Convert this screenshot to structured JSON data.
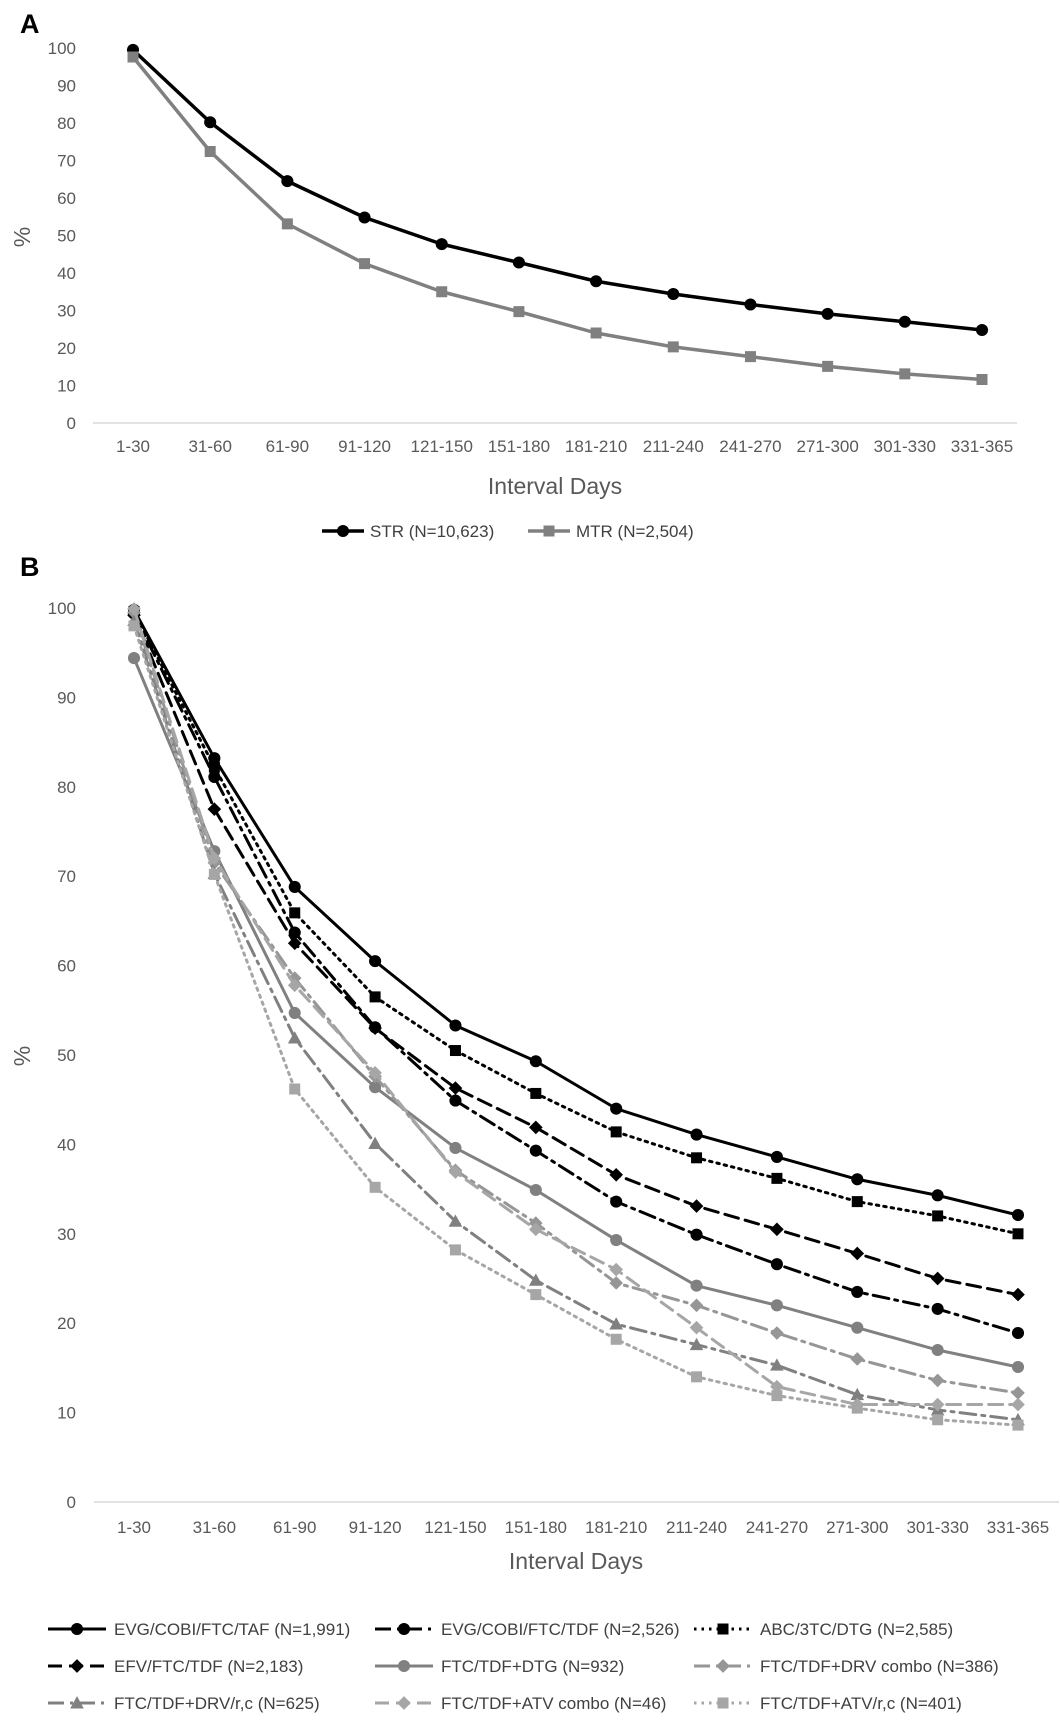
{
  "chart_data": [
    {
      "panel": "A",
      "type": "line",
      "categories": [
        "1-30",
        "31-60",
        "61-90",
        "91-120",
        "121-150",
        "151-180",
        "181-210",
        "211-240",
        "241-270",
        "271-300",
        "301-330",
        "331-365"
      ],
      "xlabel": "Interval Days",
      "ylabel": "%",
      "ylim": [
        0,
        100
      ],
      "yticks": [
        0,
        10,
        20,
        30,
        40,
        50,
        60,
        70,
        80,
        90,
        100
      ],
      "grid": false,
      "legend_position": "bottom",
      "series": [
        {
          "name": "STR (N=10,623)",
          "color": "#000000",
          "dash": "solid",
          "marker": "circle",
          "values": [
            99.5,
            80.2,
            64.5,
            54.8,
            47.7,
            42.8,
            37.8,
            34.4,
            31.6,
            29.1,
            27.0,
            24.8
          ]
        },
        {
          "name": "MTR (N=2,504)",
          "color": "#808080",
          "dash": "solid",
          "marker": "square",
          "values": [
            97.6,
            72.4,
            53.1,
            42.5,
            35.0,
            29.7,
            24.0,
            20.3,
            17.7,
            15.1,
            13.1,
            11.6
          ]
        }
      ]
    },
    {
      "panel": "B",
      "type": "line",
      "categories": [
        "1-30",
        "31-60",
        "61-90",
        "91-120",
        "121-150",
        "151-180",
        "181-210",
        "211-240",
        "241-270",
        "271-300",
        "301-330",
        "331-365"
      ],
      "xlabel": "Interval Days",
      "ylabel": "%",
      "ylim": [
        0,
        100
      ],
      "yticks": [
        0,
        10,
        20,
        30,
        40,
        50,
        60,
        70,
        80,
        90,
        100
      ],
      "grid": false,
      "legend_position": "bottom",
      "series": [
        {
          "name": "EVG/COBI/FTC/TAF (N=1,991)",
          "color": "#000000",
          "dash": "solid",
          "marker": "circle",
          "values": [
            99.8,
            83.2,
            68.8,
            60.5,
            53.3,
            49.3,
            44.0,
            41.1,
            38.6,
            36.1,
            34.3,
            32.1
          ]
        },
        {
          "name": "EVG/COBI/FTC/TDF (N=2,526)",
          "color": "#000000",
          "dash": "longdashdot",
          "marker": "circle",
          "values": [
            99.4,
            81.1,
            63.7,
            53.1,
            44.9,
            39.3,
            33.6,
            29.9,
            26.6,
            23.5,
            21.6,
            18.9
          ]
        },
        {
          "name": "ABC/3TC/DTG (N=2,585)",
          "color": "#000000",
          "dash": "dot",
          "marker": "square",
          "values": [
            99.6,
            82.2,
            65.9,
            56.5,
            50.5,
            45.7,
            41.4,
            38.5,
            36.2,
            33.6,
            32.0,
            30.0
          ]
        },
        {
          "name": "EFV/FTC/TDF (N=2,183)",
          "color": "#000000",
          "dash": "dash",
          "marker": "diamond",
          "values": [
            99.2,
            77.5,
            62.5,
            53.0,
            46.3,
            41.9,
            36.6,
            33.1,
            30.5,
            27.8,
            25.0,
            23.2
          ]
        },
        {
          "name": "FTC/TDF+DTG (N=932)",
          "color": "#808080",
          "dash": "solid",
          "marker": "circle",
          "values": [
            94.4,
            72.8,
            54.7,
            46.4,
            39.6,
            34.9,
            29.3,
            24.2,
            22.0,
            19.5,
            17.0,
            15.1
          ]
        },
        {
          "name": "FTC/TDF+DRV combo (N=386)",
          "color": "#969696",
          "dash": "longdashdot",
          "marker": "diamond",
          "values": [
            99.5,
            71.5,
            58.6,
            47.6,
            37.1,
            31.2,
            24.5,
            22.0,
            18.9,
            16.0,
            13.6,
            12.2
          ]
        },
        {
          "name": "FTC/TDF+DRV/r,c (N=625)",
          "color": "#808080",
          "dash": "longdashdot",
          "marker": "triangle",
          "values": [
            98.6,
            70.3,
            51.9,
            40.1,
            31.4,
            24.8,
            19.9,
            17.6,
            15.3,
            12.0,
            10.3,
            9.2
          ]
        },
        {
          "name": "FTC/TDF+ATV combo (N=46)",
          "color": "#a6a6a6",
          "dash": "dash",
          "marker": "diamond",
          "values": [
            99.9,
            72.0,
            57.8,
            48.0,
            36.9,
            30.5,
            26.0,
            19.5,
            12.9,
            10.9,
            10.9,
            10.9
          ]
        },
        {
          "name": "FTC/TDF+ATV/r,c (N=401)",
          "color": "#a6a6a6",
          "dash": "dot",
          "marker": "square",
          "values": [
            98.0,
            70.2,
            46.2,
            35.2,
            28.2,
            23.2,
            18.2,
            14.0,
            11.9,
            10.5,
            9.2,
            8.6
          ]
        }
      ]
    }
  ]
}
